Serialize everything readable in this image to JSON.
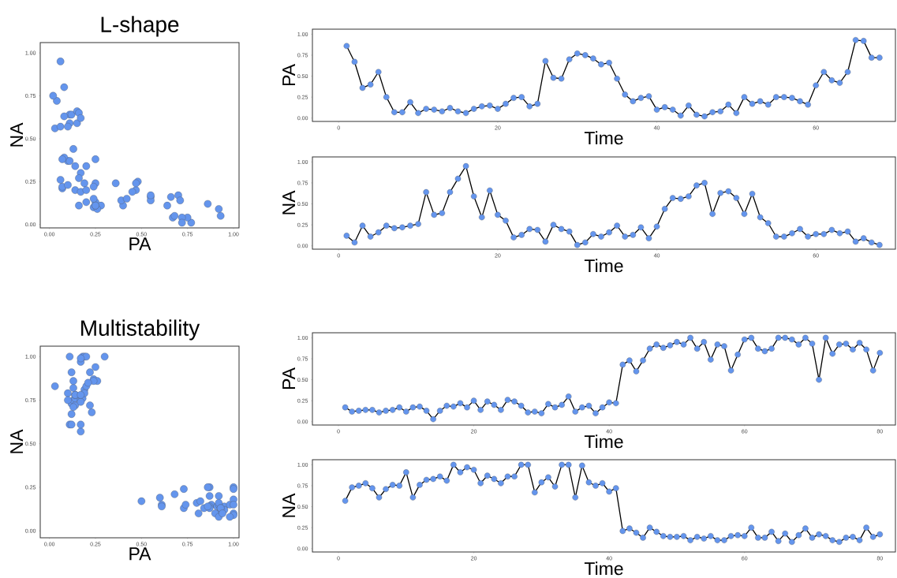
{
  "chart_data": [
    {
      "type": "scatter",
      "title": "L-shape",
      "xlabel": "PA",
      "ylabel": "NA",
      "color": "#6495ed",
      "marker": "circle",
      "x": [
        0.86,
        0.67,
        0.36,
        0.4,
        0.55,
        0.25,
        0.07,
        0.07,
        0.19,
        0.06,
        0.11,
        0.1,
        0.08,
        0.12,
        0.08,
        0.06,
        0.11,
        0.14,
        0.15,
        0.11,
        0.17,
        0.24,
        0.25,
        0.14,
        0.17,
        0.68,
        0.48,
        0.47,
        0.7,
        0.77,
        0.75,
        0.71,
        0.64,
        0.66,
        0.47,
        0.28,
        0.2,
        0.24,
        0.26,
        0.1,
        0.13,
        0.1,
        0.03,
        0.15,
        0.04,
        0.02,
        0.07,
        0.08,
        0.16,
        0.06,
        0.25,
        0.17,
        0.2,
        0.16,
        0.25,
        0.25,
        0.24,
        0.2,
        0.16,
        0.39,
        0.55,
        0.45,
        0.42,
        0.55,
        0.93,
        0.92,
        0.72,
        0.72
      ],
      "values": [
        0.12,
        0.04,
        0.24,
        0.11,
        0.16,
        0.24,
        0.21,
        0.22,
        0.24,
        0.26,
        0.64,
        0.37,
        0.39,
        0.64,
        0.8,
        0.95,
        0.59,
        0.34,
        0.66,
        0.37,
        0.3,
        0.1,
        0.13,
        0.2,
        0.19,
        0.05,
        0.25,
        0.2,
        0.17,
        0.01,
        0.04,
        0.14,
        0.11,
        0.16,
        0.24,
        0.11,
        0.13,
        0.22,
        0.09,
        0.23,
        0.44,
        0.57,
        0.56,
        0.59,
        0.72,
        0.75,
        0.38,
        0.63,
        0.65,
        0.57,
        0.38,
        0.62,
        0.34,
        0.27,
        0.11,
        0.11,
        0.15,
        0.2,
        0.11,
        0.14,
        0.14,
        0.19,
        0.15,
        0.17,
        0.05,
        0.09,
        0.04,
        0.01
      ],
      "xlim": [
        -0.05,
        1.03
      ],
      "ylim": [
        -0.02,
        1.06
      ],
      "xticks": [
        {
          "value": 0,
          "label": "0.00"
        },
        {
          "value": 0.25,
          "label": "0.25"
        },
        {
          "value": 0.5,
          "label": "0.50"
        },
        {
          "value": 0.75,
          "label": "0.75"
        },
        {
          "value": 1,
          "label": "1.00"
        }
      ],
      "yticks": [
        {
          "value": 0,
          "label": "0.00"
        },
        {
          "value": 0.25,
          "label": "0.25"
        },
        {
          "value": 0.5,
          "label": "0.50"
        },
        {
          "value": 0.75,
          "label": "0.75"
        },
        {
          "value": 1,
          "label": "1.00"
        }
      ]
    },
    {
      "type": "line",
      "xlabel": "Time",
      "ylabel": "PA",
      "color": "#6495ed",
      "marker": "circle",
      "x": [
        1,
        2,
        3,
        4,
        5,
        6,
        7,
        8,
        9,
        10,
        11,
        12,
        13,
        14,
        15,
        16,
        17,
        18,
        19,
        20,
        21,
        22,
        23,
        24,
        25,
        26,
        27,
        28,
        29,
        30,
        31,
        32,
        33,
        34,
        35,
        36,
        37,
        38,
        39,
        40,
        41,
        42,
        43,
        44,
        45,
        46,
        47,
        48,
        49,
        50,
        51,
        52,
        53,
        54,
        55,
        56,
        57,
        58,
        59,
        60,
        61,
        62,
        63,
        64,
        65,
        66,
        67,
        68
      ],
      "values": [
        0.86,
        0.67,
        0.36,
        0.4,
        0.55,
        0.25,
        0.07,
        0.07,
        0.19,
        0.06,
        0.11,
        0.1,
        0.08,
        0.12,
        0.08,
        0.06,
        0.11,
        0.14,
        0.15,
        0.11,
        0.17,
        0.24,
        0.25,
        0.14,
        0.17,
        0.68,
        0.48,
        0.47,
        0.7,
        0.77,
        0.75,
        0.71,
        0.64,
        0.66,
        0.47,
        0.28,
        0.2,
        0.24,
        0.26,
        0.1,
        0.13,
        0.1,
        0.03,
        0.15,
        0.04,
        0.02,
        0.07,
        0.08,
        0.16,
        0.06,
        0.25,
        0.17,
        0.2,
        0.16,
        0.25,
        0.25,
        0.24,
        0.2,
        0.16,
        0.39,
        0.55,
        0.45,
        0.42,
        0.55,
        0.93,
        0.92,
        0.72,
        0.72
      ],
      "xlim": [
        -3.3,
        70
      ],
      "ylim": [
        -0.04,
        1.06
      ],
      "xticks": [
        0,
        20,
        40,
        60
      ],
      "yticks": [
        {
          "value": 0,
          "label": "0.00"
        },
        {
          "value": 0.25,
          "label": "0.25"
        },
        {
          "value": 0.5,
          "label": "0.50"
        },
        {
          "value": 0.75,
          "label": "0.75"
        },
        {
          "value": 1,
          "label": "1.00"
        }
      ]
    },
    {
      "type": "line",
      "xlabel": "Time",
      "ylabel": "NA",
      "color": "#6495ed",
      "marker": "circle",
      "x": [
        1,
        2,
        3,
        4,
        5,
        6,
        7,
        8,
        9,
        10,
        11,
        12,
        13,
        14,
        15,
        16,
        17,
        18,
        19,
        20,
        21,
        22,
        23,
        24,
        25,
        26,
        27,
        28,
        29,
        30,
        31,
        32,
        33,
        34,
        35,
        36,
        37,
        38,
        39,
        40,
        41,
        42,
        43,
        44,
        45,
        46,
        47,
        48,
        49,
        50,
        51,
        52,
        53,
        54,
        55,
        56,
        57,
        58,
        59,
        60,
        61,
        62,
        63,
        64,
        65,
        66,
        67,
        68
      ],
      "values": [
        0.12,
        0.04,
        0.24,
        0.11,
        0.16,
        0.24,
        0.21,
        0.22,
        0.24,
        0.26,
        0.64,
        0.37,
        0.39,
        0.64,
        0.8,
        0.95,
        0.59,
        0.34,
        0.66,
        0.37,
        0.3,
        0.1,
        0.13,
        0.2,
        0.19,
        0.05,
        0.25,
        0.2,
        0.17,
        0.01,
        0.04,
        0.14,
        0.11,
        0.16,
        0.24,
        0.11,
        0.13,
        0.22,
        0.09,
        0.23,
        0.44,
        0.57,
        0.56,
        0.59,
        0.72,
        0.75,
        0.38,
        0.63,
        0.65,
        0.57,
        0.38,
        0.62,
        0.34,
        0.27,
        0.11,
        0.11,
        0.15,
        0.2,
        0.11,
        0.14,
        0.14,
        0.19,
        0.15,
        0.17,
        0.05,
        0.09,
        0.04,
        0.01
      ],
      "xlim": [
        -3.3,
        70
      ],
      "ylim": [
        -0.04,
        1.06
      ],
      "xticks": [
        0,
        20,
        40,
        60
      ],
      "yticks": [
        {
          "value": 0,
          "label": "0.00"
        },
        {
          "value": 0.25,
          "label": "0.25"
        },
        {
          "value": 0.5,
          "label": "0.50"
        },
        {
          "value": 0.75,
          "label": "0.75"
        },
        {
          "value": 1,
          "label": "1.00"
        }
      ]
    },
    {
      "type": "scatter",
      "title": "Multistability",
      "xlabel": "PA",
      "ylabel": "NA",
      "color": "#6495ed",
      "marker": "circle",
      "x": [
        0.17,
        0.12,
        0.13,
        0.14,
        0.14,
        0.11,
        0.13,
        0.14,
        0.17,
        0.12,
        0.17,
        0.18,
        0.13,
        0.03,
        0.13,
        0.19,
        0.18,
        0.22,
        0.17,
        0.25,
        0.14,
        0.24,
        0.2,
        0.14,
        0.26,
        0.24,
        0.19,
        0.11,
        0.12,
        0.1,
        0.21,
        0.17,
        0.2,
        0.3,
        0.12,
        0.17,
        0.19,
        0.1,
        0.17,
        0.23,
        0.22,
        0.68,
        0.73,
        0.6,
        0.73,
        0.87,
        0.92,
        0.88,
        0.91,
        0.95,
        0.92,
        1.0,
        0.87,
        0.95,
        0.74,
        0.92,
        0.9,
        0.61,
        0.8,
        0.98,
        1.0,
        0.87,
        0.84,
        0.87,
        1.0,
        1.0,
        0.98,
        0.92,
        1.0,
        0.93,
        0.5,
        1.0,
        0.81,
        0.92,
        0.93,
        0.86,
        0.94,
        0.86,
        0.61,
        0.82
      ],
      "values": [
        0.57,
        0.73,
        0.75,
        0.78,
        0.72,
        0.61,
        0.71,
        0.76,
        0.75,
        0.91,
        0.61,
        0.76,
        0.82,
        0.83,
        0.86,
        0.81,
        1.0,
        0.91,
        0.97,
        0.94,
        0.78,
        0.87,
        0.83,
        0.78,
        0.86,
        0.86,
        1.0,
        1.0,
        0.67,
        0.79,
        0.85,
        0.74,
        1.0,
        1.0,
        0.61,
        0.99,
        0.79,
        0.75,
        0.78,
        0.68,
        0.72,
        0.21,
        0.24,
        0.19,
        0.13,
        0.25,
        0.2,
        0.15,
        0.14,
        0.14,
        0.15,
        0.1,
        0.14,
        0.12,
        0.15,
        0.1,
        0.1,
        0.15,
        0.16,
        0.15,
        0.25,
        0.13,
        0.13,
        0.2,
        0.09,
        0.18,
        0.08,
        0.16,
        0.24,
        0.13,
        0.17,
        0.15,
        0.1,
        0.08,
        0.13,
        0.14,
        0.1,
        0.25,
        0.14,
        0.17
      ],
      "xlim": [
        -0.05,
        1.03
      ],
      "ylim": [
        -0.04,
        1.06
      ],
      "xticks": [
        {
          "value": 0,
          "label": "0.00"
        },
        {
          "value": 0.25,
          "label": "0.25"
        },
        {
          "value": 0.5,
          "label": "0.50"
        },
        {
          "value": 0.75,
          "label": "0.75"
        },
        {
          "value": 1,
          "label": "1.00"
        }
      ],
      "yticks": [
        {
          "value": 0,
          "label": "0.00"
        },
        {
          "value": 0.25,
          "label": "0.25"
        },
        {
          "value": 0.5,
          "label": "0.50"
        },
        {
          "value": 0.75,
          "label": "0.75"
        },
        {
          "value": 1,
          "label": "1.00"
        }
      ]
    },
    {
      "type": "line",
      "xlabel": "Time",
      "ylabel": "PA",
      "color": "#6495ed",
      "marker": "circle",
      "x": [
        1,
        2,
        3,
        4,
        5,
        6,
        7,
        8,
        9,
        10,
        11,
        12,
        13,
        14,
        15,
        16,
        17,
        18,
        19,
        20,
        21,
        22,
        23,
        24,
        25,
        26,
        27,
        28,
        29,
        30,
        31,
        32,
        33,
        34,
        35,
        36,
        37,
        38,
        39,
        40,
        41,
        42,
        43,
        44,
        45,
        46,
        47,
        48,
        49,
        50,
        51,
        52,
        53,
        54,
        55,
        56,
        57,
        58,
        59,
        60,
        61,
        62,
        63,
        64,
        65,
        66,
        67,
        68,
        69,
        70,
        71,
        72,
        73,
        74,
        75,
        76,
        77,
        78,
        79,
        80
      ],
      "values": [
        0.17,
        0.12,
        0.13,
        0.14,
        0.14,
        0.11,
        0.13,
        0.14,
        0.17,
        0.12,
        0.17,
        0.18,
        0.13,
        0.03,
        0.13,
        0.19,
        0.18,
        0.22,
        0.17,
        0.25,
        0.14,
        0.24,
        0.2,
        0.14,
        0.26,
        0.24,
        0.19,
        0.11,
        0.12,
        0.1,
        0.21,
        0.17,
        0.2,
        0.3,
        0.12,
        0.17,
        0.19,
        0.1,
        0.17,
        0.23,
        0.22,
        0.68,
        0.73,
        0.6,
        0.73,
        0.87,
        0.92,
        0.88,
        0.91,
        0.95,
        0.92,
        1.0,
        0.87,
        0.95,
        0.74,
        0.92,
        0.9,
        0.61,
        0.8,
        0.98,
        1.0,
        0.87,
        0.84,
        0.87,
        1.0,
        1.0,
        0.98,
        0.92,
        1.0,
        0.93,
        0.5,
        1.0,
        0.81,
        0.92,
        0.93,
        0.86,
        0.94,
        0.86,
        0.61,
        0.82
      ],
      "xlim": [
        -3.85,
        82.3
      ],
      "ylim": [
        -0.04,
        1.06
      ],
      "xticks": [
        0,
        20,
        40,
        60,
        80
      ],
      "yticks": [
        {
          "value": 0,
          "label": "0.00"
        },
        {
          "value": 0.25,
          "label": "0.25"
        },
        {
          "value": 0.5,
          "label": "0.50"
        },
        {
          "value": 0.75,
          "label": "0.75"
        },
        {
          "value": 1,
          "label": "1.00"
        }
      ]
    },
    {
      "type": "line",
      "xlabel": "Time",
      "ylabel": "NA",
      "color": "#6495ed",
      "marker": "circle",
      "x": [
        1,
        2,
        3,
        4,
        5,
        6,
        7,
        8,
        9,
        10,
        11,
        12,
        13,
        14,
        15,
        16,
        17,
        18,
        19,
        20,
        21,
        22,
        23,
        24,
        25,
        26,
        27,
        28,
        29,
        30,
        31,
        32,
        33,
        34,
        35,
        36,
        37,
        38,
        39,
        40,
        41,
        42,
        43,
        44,
        45,
        46,
        47,
        48,
        49,
        50,
        51,
        52,
        53,
        54,
        55,
        56,
        57,
        58,
        59,
        60,
        61,
        62,
        63,
        64,
        65,
        66,
        67,
        68,
        69,
        70,
        71,
        72,
        73,
        74,
        75,
        76,
        77,
        78,
        79,
        80
      ],
      "values": [
        0.57,
        0.73,
        0.75,
        0.78,
        0.72,
        0.61,
        0.71,
        0.76,
        0.75,
        0.91,
        0.61,
        0.76,
        0.82,
        0.83,
        0.86,
        0.81,
        1.0,
        0.91,
        0.97,
        0.94,
        0.78,
        0.87,
        0.83,
        0.78,
        0.86,
        0.86,
        1.0,
        1.0,
        0.67,
        0.79,
        0.85,
        0.74,
        1.0,
        1.0,
        0.61,
        0.99,
        0.79,
        0.75,
        0.78,
        0.68,
        0.72,
        0.21,
        0.24,
        0.19,
        0.13,
        0.25,
        0.2,
        0.15,
        0.14,
        0.14,
        0.15,
        0.1,
        0.14,
        0.12,
        0.15,
        0.1,
        0.1,
        0.15,
        0.16,
        0.15,
        0.25,
        0.13,
        0.13,
        0.2,
        0.09,
        0.18,
        0.08,
        0.16,
        0.24,
        0.13,
        0.17,
        0.15,
        0.1,
        0.08,
        0.13,
        0.14,
        0.1,
        0.25,
        0.14,
        0.17
      ],
      "xlim": [
        -3.85,
        82.3
      ],
      "ylim": [
        -0.04,
        1.06
      ],
      "xticks": [
        0,
        20,
        40,
        60,
        80
      ],
      "yticks": [
        {
          "value": 0,
          "label": "0.00"
        },
        {
          "value": 0.25,
          "label": "0.25"
        },
        {
          "value": 0.5,
          "label": "0.50"
        },
        {
          "value": 0.75,
          "label": "0.75"
        },
        {
          "value": 1,
          "label": "1.00"
        }
      ]
    }
  ]
}
